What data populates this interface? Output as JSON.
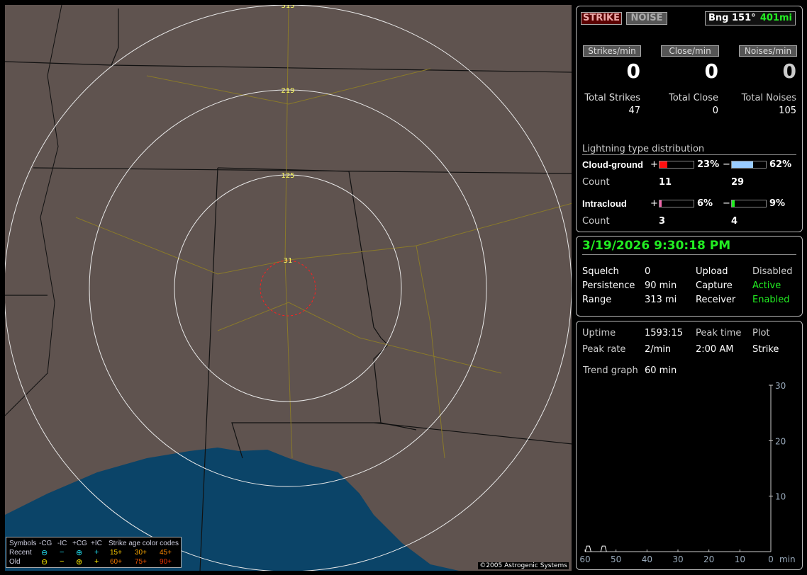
{
  "map": {
    "ring_labels": [
      "313",
      "219",
      "125",
      "31"
    ],
    "copyright": "©2005 Astrogenic Systems",
    "colors": {
      "land": "#5f534f",
      "water": "#0b4468",
      "rings": "#e8e8e8",
      "close_ring": "#ff2020"
    }
  },
  "legend": {
    "symbols": "Symbols",
    "cols": [
      "-CG",
      "-IC",
      "+CG",
      "+IC"
    ],
    "age_title": "Strike age color codes",
    "rows": [
      {
        "label": "Recent",
        "symbols": [
          "⊖",
          "−",
          "⊕",
          "+"
        ],
        "ages": [
          "15+",
          "30+",
          "45+"
        ],
        "color": "#22ddee"
      },
      {
        "label": "Old",
        "symbols": [
          "⊖",
          "−",
          "⊕",
          "+"
        ],
        "ages": [
          "60+",
          "75+",
          "90+"
        ],
        "color": "#ffee00"
      }
    ]
  },
  "header": {
    "strike_btn": "STRIKE",
    "noise_btn": "NOISE",
    "bearing": "Bng 151°",
    "distance": "401mi"
  },
  "rates": [
    {
      "label": "Strikes/min",
      "value": "0",
      "total_label": "Total Strikes",
      "total": "47"
    },
    {
      "label": "Close/min",
      "value": "0",
      "total_label": "Total Close",
      "total": "0"
    },
    {
      "label": "Noises/min",
      "value": "0",
      "total_label": "Total Noises",
      "total": "105"
    }
  ],
  "distribution": {
    "title": "Lightning type distribution",
    "cg": {
      "label": "Cloud-ground",
      "pos_pct": 23,
      "pos_text": "23%",
      "neg_pct": 62,
      "neg_text": "62%",
      "count_label": "Count",
      "pos_count": "11",
      "neg_count": "29"
    },
    "ic": {
      "label": "Intracloud",
      "pos_pct": 6,
      "pos_text": "6%",
      "neg_pct": 9,
      "neg_text": "9%",
      "count_label": "Count",
      "pos_count": "3",
      "neg_count": "4"
    },
    "plus": "+",
    "minus": "−"
  },
  "status": {
    "datetime": "3/19/2026 9:30:18 PM",
    "rows": [
      [
        "Squelch",
        "0",
        "Upload",
        "Disabled"
      ],
      [
        "Persistence",
        "90 min",
        "Capture",
        "Active"
      ],
      [
        "Range",
        "313 mi",
        "Receiver",
        "Enabled"
      ]
    ]
  },
  "stats": {
    "uptime_label": "Uptime",
    "uptime": "1593:15",
    "peak_time_label": "Peak time",
    "plot_label": "Plot",
    "peak_rate_label": "Peak rate",
    "peak_rate": "2/min",
    "peak_time": "2:00 AM",
    "plot": "Strike",
    "trend_label": "Trend graph",
    "trend": "60 min"
  },
  "trend": {
    "y_ticks": [
      "30",
      "20",
      "10"
    ],
    "x_ticks": [
      "60",
      "50",
      "40",
      "30",
      "20",
      "10",
      "0"
    ],
    "x_unit": "min",
    "points": [
      [
        59,
        1
      ],
      [
        54,
        1
      ]
    ]
  }
}
